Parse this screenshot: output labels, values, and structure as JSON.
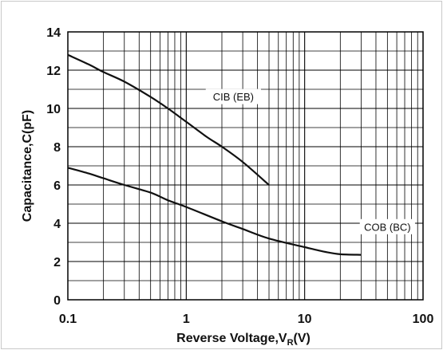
{
  "chart_data": {
    "type": "line",
    "x_scale": "log",
    "xlim": [
      0.1,
      100
    ],
    "ylim": [
      0,
      14
    ],
    "grid": true,
    "xlabel": "Reverse Voltage,V",
    "xlabel_sub": "R",
    "xlabel_suffix": "(V)",
    "ylabel": "Capacitance,C(pF)",
    "x_ticks": [
      {
        "value": 0.1,
        "label": "0.1"
      },
      {
        "value": 1,
        "label": "1"
      },
      {
        "value": 10,
        "label": "10"
      },
      {
        "value": 100,
        "label": "100"
      }
    ],
    "y_ticks": [
      {
        "value": 0,
        "label": "0"
      },
      {
        "value": 2,
        "label": "2"
      },
      {
        "value": 4,
        "label": "4"
      },
      {
        "value": 6,
        "label": "6"
      },
      {
        "value": 8,
        "label": "8"
      },
      {
        "value": 10,
        "label": "10"
      },
      {
        "value": 12,
        "label": "12"
      },
      {
        "value": 14,
        "label": "14"
      }
    ],
    "series": [
      {
        "name": "CIB (EB)",
        "x": [
          0.1,
          0.15,
          0.2,
          0.3,
          0.5,
          0.7,
          1,
          1.5,
          2,
          3,
          5
        ],
        "values": [
          12.8,
          12.3,
          11.9,
          11.4,
          10.6,
          10.0,
          9.3,
          8.5,
          8.0,
          7.2,
          6.0
        ]
      },
      {
        "name": "COB (BC)",
        "x": [
          0.1,
          0.15,
          0.2,
          0.3,
          0.5,
          0.7,
          1,
          2,
          3,
          5,
          10,
          15,
          20,
          30
        ],
        "values": [
          6.9,
          6.6,
          6.35,
          6.0,
          5.6,
          5.2,
          4.85,
          4.1,
          3.7,
          3.2,
          2.75,
          2.5,
          2.38,
          2.35
        ]
      }
    ],
    "annotations": [
      {
        "text": "CIB (EB)",
        "x": 2.5,
        "y": 10.6
      },
      {
        "text": "COB (BC)",
        "x": 50,
        "y": 3.8
      }
    ]
  }
}
